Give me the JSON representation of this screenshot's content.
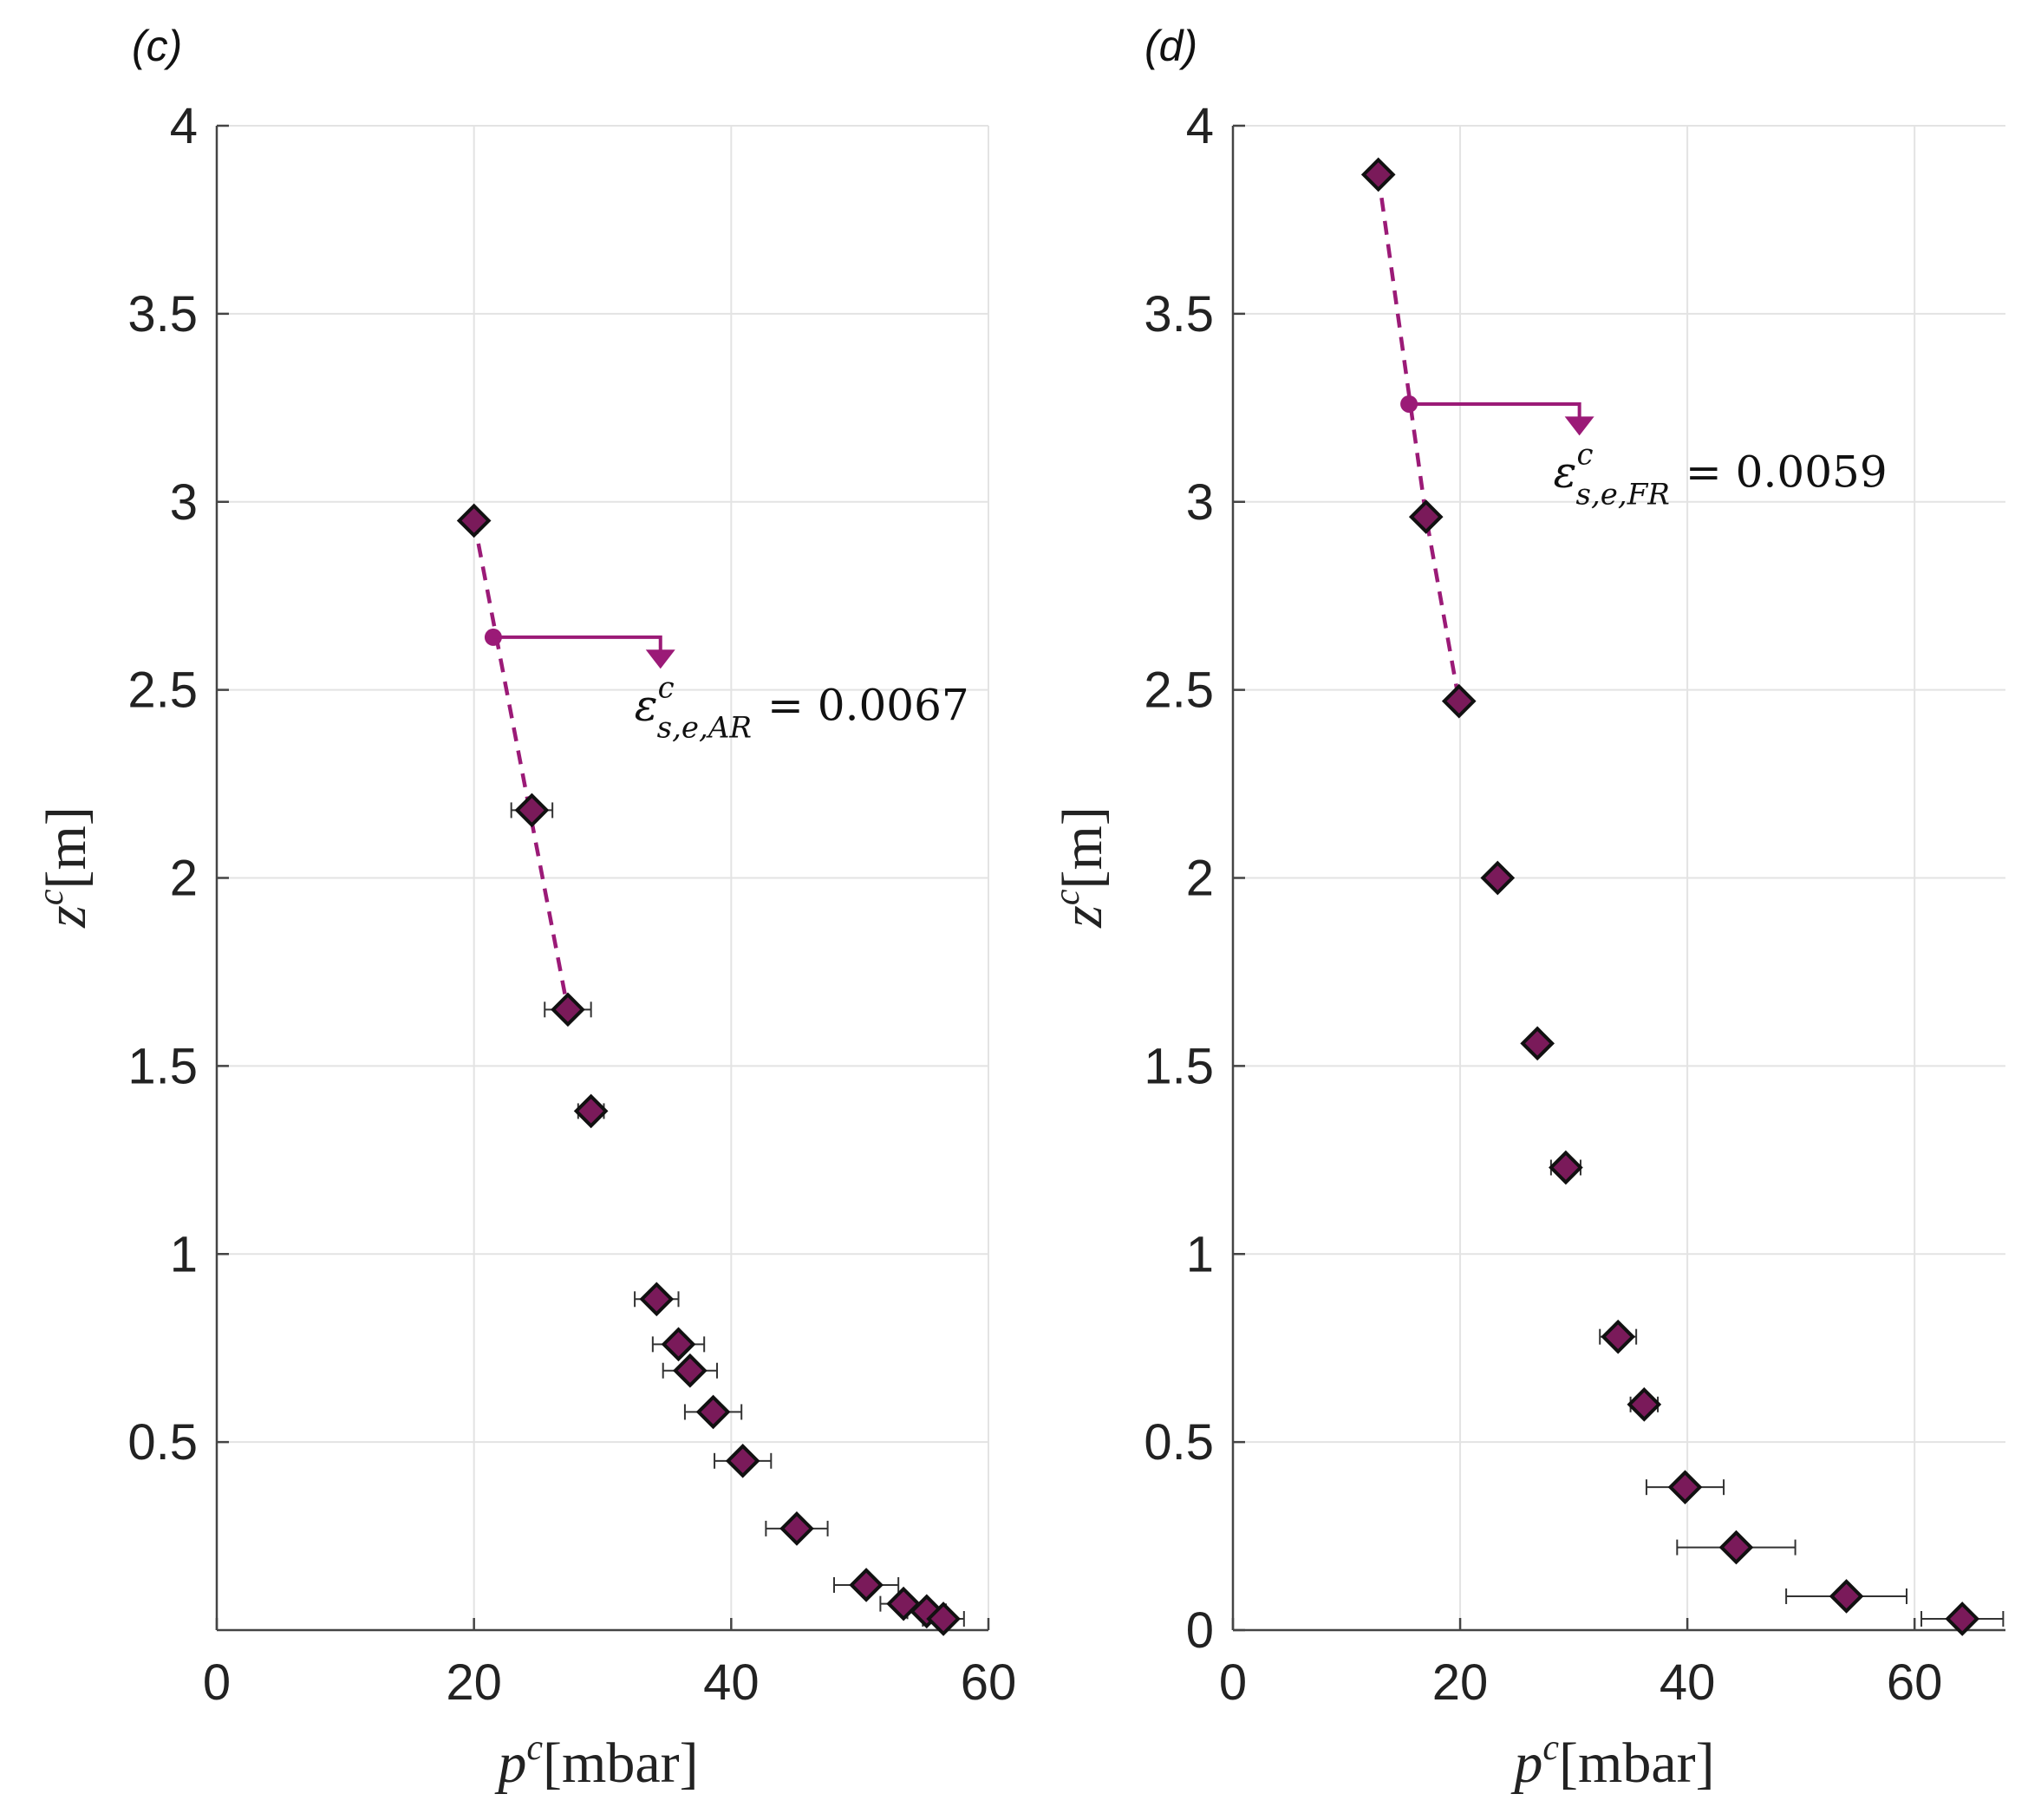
{
  "chart_data": [
    {
      "type": "scatter",
      "panel_label": "(c)",
      "xlabel": {
        "base": "p",
        "sup": "c",
        "unit": "[mbar]"
      },
      "ylabel": {
        "base": "z",
        "sup": "c",
        "unit": "[m]"
      },
      "xlim": [
        0,
        60
      ],
      "ylim": [
        0,
        4
      ],
      "xticks": [
        0,
        20,
        40,
        60
      ],
      "xtick_labels": [
        "0",
        "20",
        "40",
        "60"
      ],
      "yticks": [
        0.5,
        1,
        1.5,
        2,
        2.5,
        3,
        3.5,
        4
      ],
      "ytick_labels": [
        "0.5",
        "1",
        "1.5",
        "2",
        "2.5",
        "3",
        "3.5",
        "4"
      ],
      "grid": true,
      "marker_color": "#7a1a5a",
      "points": [
        {
          "x": 20.0,
          "y": 2.95,
          "xerr": 0.0
        },
        {
          "x": 24.5,
          "y": 2.18,
          "xerr": 1.6
        },
        {
          "x": 27.3,
          "y": 1.65,
          "xerr": 1.8
        },
        {
          "x": 29.1,
          "y": 1.38,
          "xerr": 1.0
        },
        {
          "x": 34.2,
          "y": 0.88,
          "xerr": 1.7
        },
        {
          "x": 35.9,
          "y": 0.76,
          "xerr": 2.0
        },
        {
          "x": 36.8,
          "y": 0.69,
          "xerr": 2.1
        },
        {
          "x": 38.6,
          "y": 0.58,
          "xerr": 2.2
        },
        {
          "x": 40.9,
          "y": 0.45,
          "xerr": 2.2
        },
        {
          "x": 45.1,
          "y": 0.27,
          "xerr": 2.4
        },
        {
          "x": 50.5,
          "y": 0.12,
          "xerr": 2.5
        },
        {
          "x": 53.4,
          "y": 0.07,
          "xerr": 1.8
        },
        {
          "x": 55.2,
          "y": 0.05,
          "xerr": 1.5
        },
        {
          "x": 56.5,
          "y": 0.03,
          "xerr": 1.6
        }
      ],
      "fit_line": {
        "x": [
          20.0,
          27.3
        ],
        "y": [
          2.95,
          1.65
        ],
        "color": "#9b1a77",
        "style": "dashed"
      },
      "annotation": {
        "symbol": "ε",
        "sub": "s,e,AR",
        "sup": "c",
        "value_text": "= 0.0067",
        "arrow_from": {
          "x": 21.5,
          "y": 2.64
        },
        "arrow_to": {
          "x": 34.5,
          "y": 2.57
        }
      }
    },
    {
      "type": "scatter",
      "panel_label": "(d)",
      "xlabel": {
        "base": "p",
        "sup": "c",
        "unit": "[mbar]"
      },
      "ylabel": {
        "base": "z",
        "sup": "c",
        "unit": "[m]"
      },
      "xlim": [
        0,
        68
      ],
      "ylim": [
        0,
        4
      ],
      "xticks": [
        0,
        20,
        40,
        60
      ],
      "xtick_labels": [
        "0",
        "20",
        "40",
        "60"
      ],
      "yticks": [
        0,
        0.5,
        1,
        1.5,
        2,
        2.5,
        3,
        3.5,
        4
      ],
      "ytick_labels": [
        "0",
        "0.5",
        "1",
        "1.5",
        "2",
        "2.5",
        "3",
        "3.5",
        "4"
      ],
      "grid": true,
      "marker_color": "#7a1a5a",
      "points": [
        {
          "x": 12.8,
          "y": 3.87,
          "xerr": 0.0
        },
        {
          "x": 17.0,
          "y": 2.96,
          "xerr": 0.0
        },
        {
          "x": 19.9,
          "y": 2.47,
          "xerr": 0.0
        },
        {
          "x": 23.3,
          "y": 2.0,
          "xerr": 0.0
        },
        {
          "x": 26.8,
          "y": 1.56,
          "xerr": 0.0
        },
        {
          "x": 29.3,
          "y": 1.23,
          "xerr": 1.3
        },
        {
          "x": 33.9,
          "y": 0.78,
          "xerr": 1.6
        },
        {
          "x": 36.2,
          "y": 0.6,
          "xerr": 1.2
        },
        {
          "x": 39.8,
          "y": 0.38,
          "xerr": 3.4
        },
        {
          "x": 44.3,
          "y": 0.22,
          "xerr": 5.2
        },
        {
          "x": 54.0,
          "y": 0.09,
          "xerr": 5.3
        },
        {
          "x": 64.2,
          "y": 0.03,
          "xerr": 3.6
        }
      ],
      "fit_line": {
        "x": [
          12.8,
          17.0,
          19.9
        ],
        "y": [
          3.87,
          2.96,
          2.47
        ],
        "color": "#9b1a77",
        "style": "dashed"
      },
      "annotation": {
        "symbol": "ε",
        "sub": "s,e,FR",
        "sup": "c",
        "value_text": "= 0.0059",
        "arrow_from": {
          "x": 15.5,
          "y": 3.26
        },
        "arrow_to": {
          "x": 30.5,
          "y": 3.19
        }
      }
    }
  ]
}
